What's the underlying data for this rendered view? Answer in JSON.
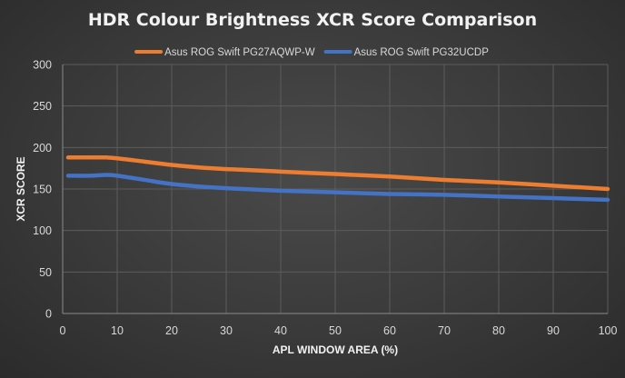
{
  "chart_data": {
    "type": "line",
    "title": "HDR Colour Brightness XCR Score Comparison",
    "xlabel": "APL WINDOW AREA (%)",
    "ylabel": "XCR SCORE",
    "xlim": [
      0,
      100
    ],
    "ylim": [
      0,
      300
    ],
    "xticks": [
      0,
      10,
      20,
      30,
      40,
      50,
      60,
      70,
      80,
      90,
      100
    ],
    "yticks": [
      0,
      50,
      100,
      150,
      200,
      250,
      300
    ],
    "grid": true,
    "legend": "top",
    "series": [
      {
        "name": "Asus ROG Swift PG27AQWP-W",
        "color": "#ed7d31",
        "points": [
          [
            1,
            188
          ],
          [
            5,
            188
          ],
          [
            8,
            188
          ],
          [
            10,
            187
          ],
          [
            15,
            183
          ],
          [
            20,
            179
          ],
          [
            25,
            176
          ],
          [
            30,
            174
          ],
          [
            40,
            171
          ],
          [
            50,
            168
          ],
          [
            60,
            165
          ],
          [
            70,
            161
          ],
          [
            80,
            158
          ],
          [
            90,
            154
          ],
          [
            100,
            150
          ]
        ]
      },
      {
        "name": "Asus ROG Swift PG32UCDP",
        "color": "#4472c4",
        "points": [
          [
            1,
            166
          ],
          [
            5,
            166
          ],
          [
            8,
            167
          ],
          [
            10,
            166
          ],
          [
            15,
            161
          ],
          [
            20,
            156
          ],
          [
            25,
            153
          ],
          [
            30,
            151
          ],
          [
            40,
            148
          ],
          [
            50,
            146
          ],
          [
            60,
            144
          ],
          [
            70,
            143
          ],
          [
            80,
            141
          ],
          [
            90,
            139
          ],
          [
            100,
            137
          ]
        ]
      }
    ]
  }
}
